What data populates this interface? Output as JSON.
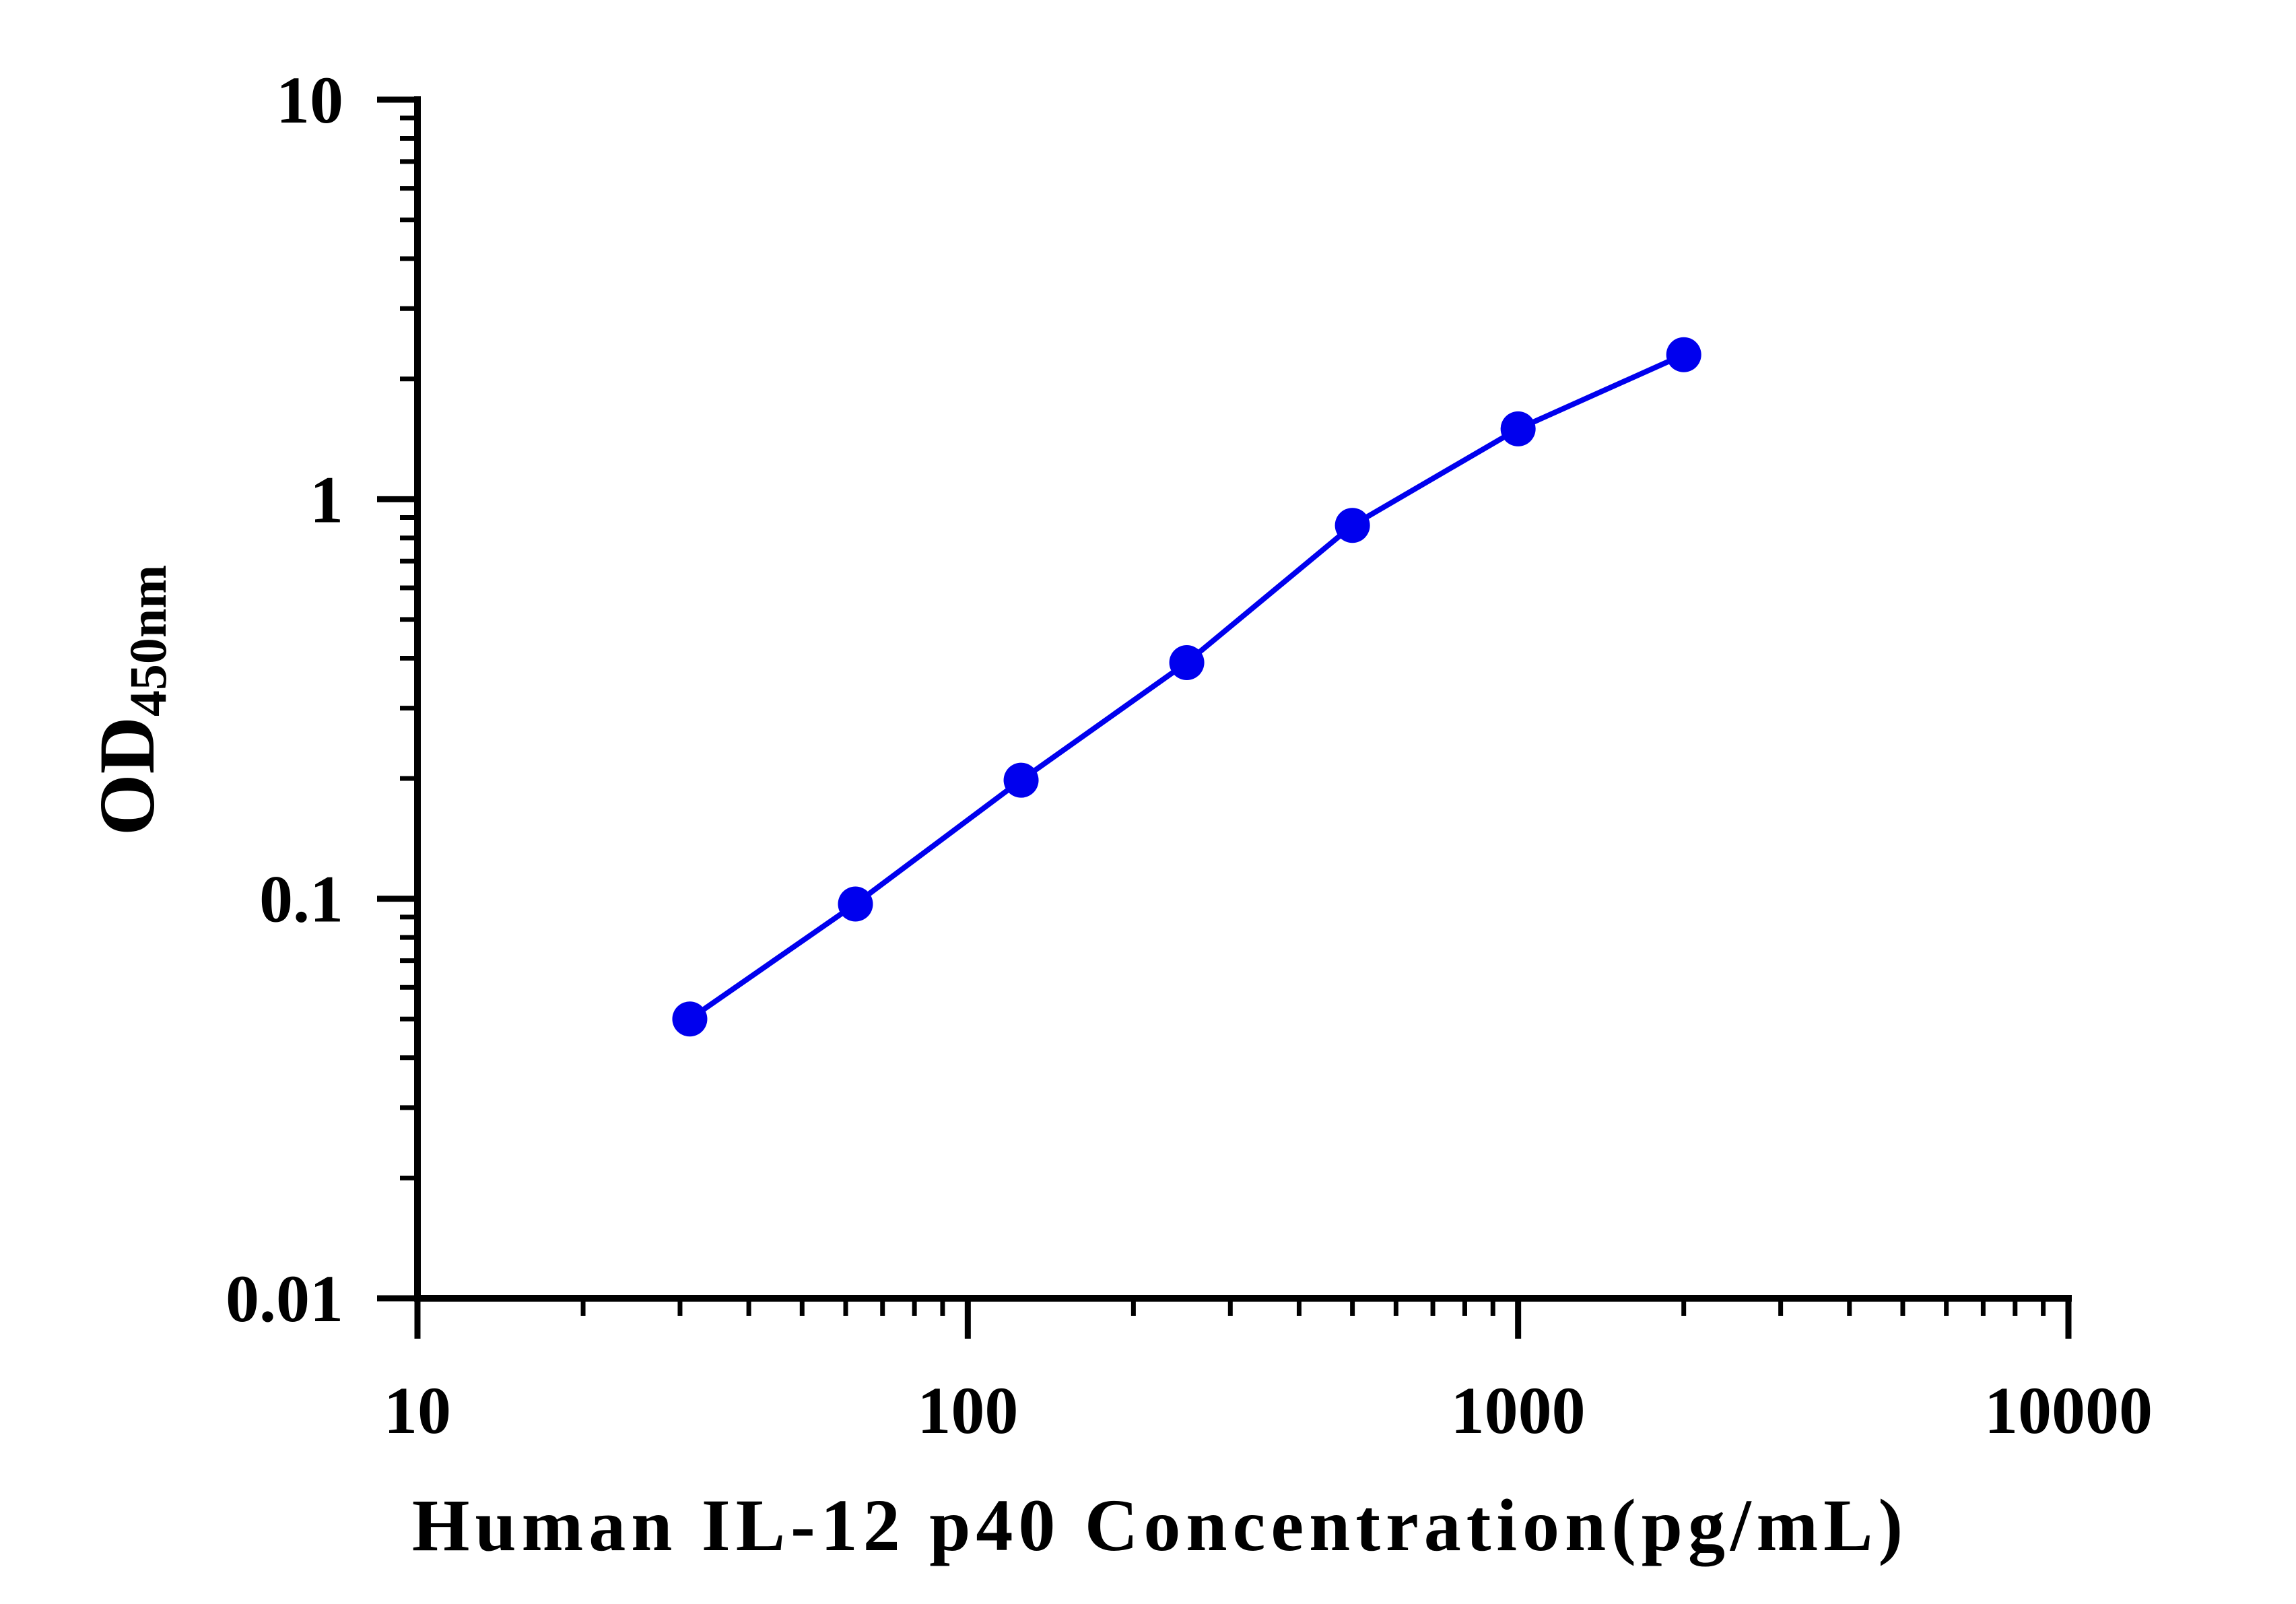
{
  "chart_data": {
    "type": "line",
    "xlabel": "Human IL-12 p40 Concentration(pg/mL)",
    "ylabel_main": "OD",
    "ylabel_sub": "450nm",
    "x_scale": "log",
    "y_scale": "log",
    "xlim": [
      10,
      10000
    ],
    "ylim": [
      0.01,
      10
    ],
    "x_ticks": [
      {
        "value": 10,
        "label": "10"
      },
      {
        "value": 100,
        "label": "100"
      },
      {
        "value": 1000,
        "label": "1000"
      },
      {
        "value": 10000,
        "label": "10000"
      }
    ],
    "y_ticks": [
      {
        "value": 0.01,
        "label": "0.01"
      },
      {
        "value": 0.1,
        "label": "0.1"
      },
      {
        "value": 1,
        "label": "1"
      },
      {
        "value": 10,
        "label": "10"
      }
    ],
    "grid": false,
    "series": [
      {
        "color": "#0000ee",
        "x": [
          31.25,
          62.5,
          125,
          250,
          500,
          1000,
          2000
        ],
        "y": [
          0.05,
          0.097,
          0.198,
          0.39,
          0.86,
          1.5,
          2.3
        ]
      }
    ]
  }
}
